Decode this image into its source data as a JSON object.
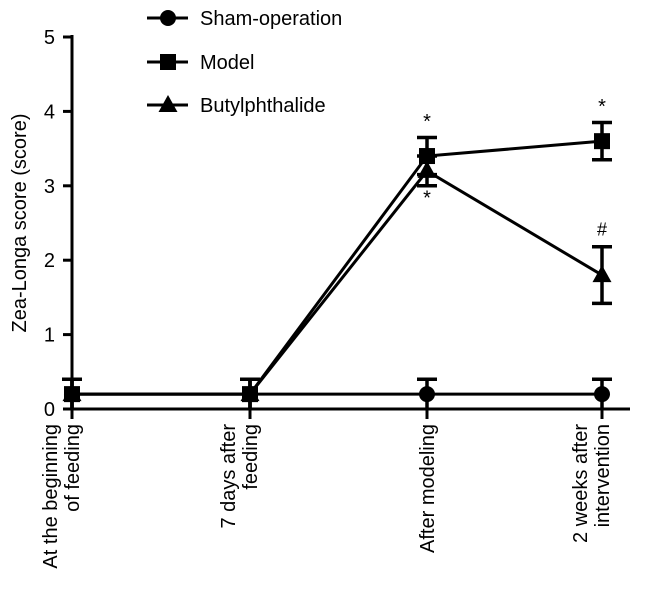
{
  "chart_data": {
    "type": "line",
    "title": "",
    "xlabel": "",
    "ylabel": "Zea-Longa score (score)",
    "ylim": [
      0,
      5
    ],
    "yticks": [
      "0",
      "1",
      "2",
      "3",
      "4",
      "5"
    ],
    "legend_position": "top-left",
    "categories": [
      [
        "At the beginning",
        "of feeding"
      ],
      [
        "7 days after",
        "feeding"
      ],
      [
        "After modeling"
      ],
      [
        "2 weeks after",
        "intervention"
      ]
    ],
    "series": [
      {
        "name": "Sham-operation",
        "marker": "circle",
        "values": [
          0.2,
          0.2,
          0.2,
          0.2
        ],
        "errors": [
          0.2,
          0.2,
          0.2,
          0.2
        ]
      },
      {
        "name": "Model",
        "marker": "square",
        "values": [
          0.2,
          0.2,
          3.4,
          3.6
        ],
        "errors": [
          0.2,
          0.2,
          0.25,
          0.25
        ]
      },
      {
        "name": "Butylphthalide",
        "marker": "triangle",
        "values": [
          0.2,
          0.2,
          3.2,
          1.8
        ],
        "errors": [
          0.2,
          0.2,
          0.2,
          0.38
        ]
      }
    ],
    "annotations": [
      {
        "text": "*",
        "category": 2,
        "y": 3.78
      },
      {
        "text": "*",
        "category": 2,
        "y": 2.75
      },
      {
        "text": "*",
        "category": 3,
        "y": 3.98
      },
      {
        "text": "#",
        "category": 3,
        "y": 2.33
      }
    ]
  }
}
